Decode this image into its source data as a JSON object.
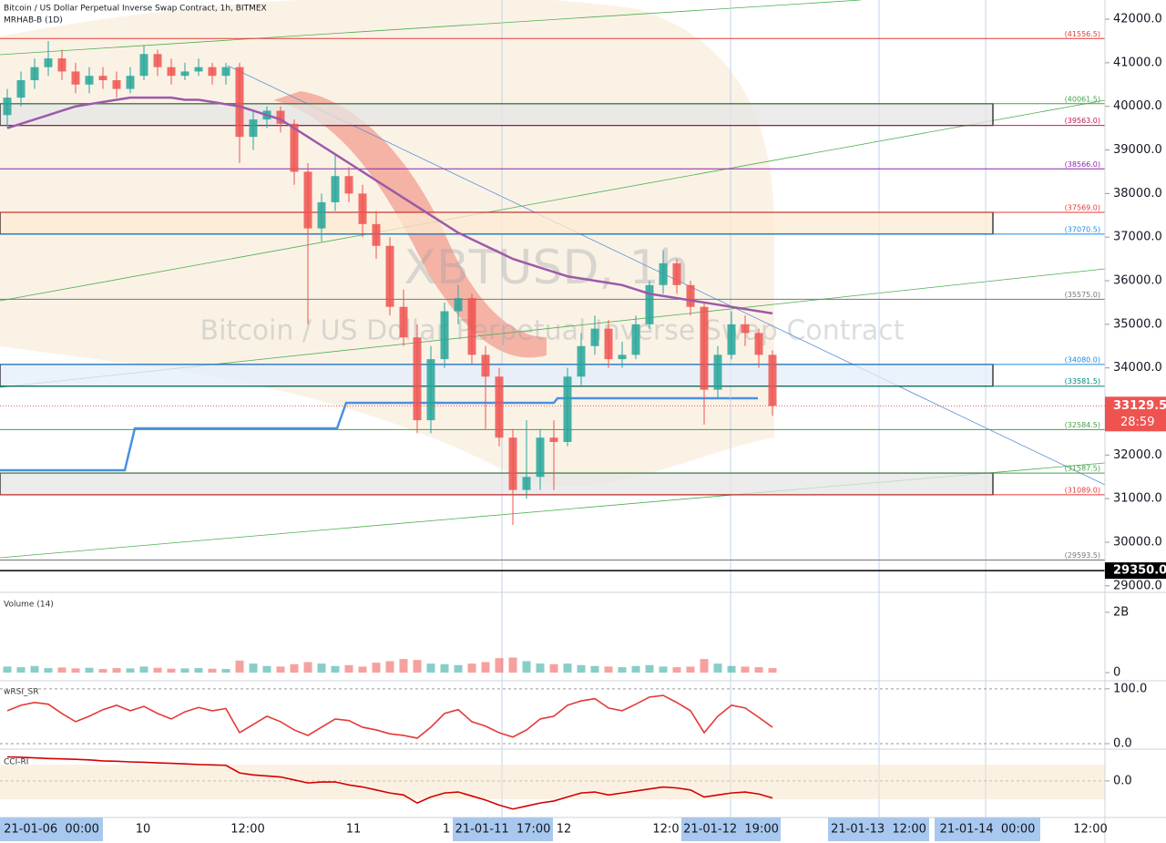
{
  "chart_data": {
    "type": "candlestick",
    "title": "Bitcoin / US Dollar Perpetual Inverse Swap Contract, 1h, BITMEX",
    "subtitle": "MRHAB-B (1D)",
    "watermark": [
      "XBTUSD, 1h",
      "Bitcoin / US Dollar Perpetual Inverse Swap Contract"
    ],
    "up_color": "#26a69a",
    "down_color": "#ef5350",
    "candles": [
      [
        39800,
        40400,
        39500,
        40200
      ],
      [
        40200,
        40800,
        40000,
        40600
      ],
      [
        40600,
        41100,
        40400,
        40900
      ],
      [
        40900,
        41500,
        40700,
        41100
      ],
      [
        41100,
        41300,
        40600,
        40800
      ],
      [
        40800,
        41000,
        40300,
        40500
      ],
      [
        40500,
        40900,
        40300,
        40700
      ],
      [
        40700,
        40900,
        40400,
        40600
      ],
      [
        40600,
        40800,
        40200,
        40400
      ],
      [
        40400,
        40900,
        40300,
        40700
      ],
      [
        40700,
        41400,
        40600,
        41200
      ],
      [
        41200,
        41300,
        40700,
        40900
      ],
      [
        40900,
        41100,
        40500,
        40700
      ],
      [
        40700,
        41000,
        40600,
        40800
      ],
      [
        40800,
        41100,
        40700,
        40900
      ],
      [
        40900,
        41000,
        40500,
        40700
      ],
      [
        40700,
        41000,
        40500,
        40900
      ],
      [
        40900,
        41000,
        38700,
        39300
      ],
      [
        39300,
        39900,
        39000,
        39700
      ],
      [
        39700,
        40000,
        39500,
        39900
      ],
      [
        39900,
        40000,
        39400,
        39600
      ],
      [
        39600,
        39700,
        38200,
        38500
      ],
      [
        38500,
        38700,
        35000,
        37200
      ],
      [
        37200,
        38000,
        36900,
        37800
      ],
      [
        37800,
        38900,
        37600,
        38400
      ],
      [
        38400,
        38600,
        37800,
        38000
      ],
      [
        38000,
        38200,
        37000,
        37300
      ],
      [
        37300,
        37600,
        36500,
        36800
      ],
      [
        36800,
        37000,
        35200,
        35400
      ],
      [
        35400,
        35800,
        34500,
        34700
      ],
      [
        34700,
        35000,
        32500,
        32800
      ],
      [
        32800,
        34500,
        32500,
        34200
      ],
      [
        34200,
        35500,
        34000,
        35300
      ],
      [
        35300,
        35900,
        35000,
        35600
      ],
      [
        35600,
        35700,
        34100,
        34300
      ],
      [
        34300,
        34500,
        32600,
        33800
      ],
      [
        33800,
        34000,
        32200,
        32400
      ],
      [
        32400,
        32600,
        30400,
        31200
      ],
      [
        31200,
        32800,
        31000,
        31500
      ],
      [
        31500,
        32600,
        31200,
        32400
      ],
      [
        32400,
        32800,
        31200,
        32300
      ],
      [
        32300,
        34000,
        32200,
        33800
      ],
      [
        33800,
        34800,
        33600,
        34500
      ],
      [
        34500,
        35200,
        34300,
        34900
      ],
      [
        34900,
        35100,
        34000,
        34200
      ],
      [
        34200,
        34600,
        34000,
        34300
      ],
      [
        34300,
        35200,
        34200,
        35000
      ],
      [
        35000,
        36000,
        34900,
        35900
      ],
      [
        35900,
        36700,
        35700,
        36400
      ],
      [
        36400,
        36500,
        35700,
        35900
      ],
      [
        35900,
        36000,
        35200,
        35400
      ],
      [
        35400,
        35500,
        32700,
        33500
      ],
      [
        33500,
        34500,
        33300,
        34300
      ],
      [
        34300,
        35300,
        34200,
        35000
      ],
      [
        35000,
        35200,
        34500,
        34800
      ],
      [
        34800,
        34900,
        34000,
        34300
      ],
      [
        34300,
        34400,
        32900,
        33129.5
      ]
    ],
    "ma": {
      "color": "#9c5aa8",
      "values": [
        39500,
        39600,
        39700,
        39800,
        39900,
        40000,
        40050,
        40100,
        40150,
        40200,
        40200,
        40200,
        40200,
        40150,
        40150,
        40100,
        40050,
        40000,
        39900,
        39800,
        39700,
        39500,
        39300,
        39100,
        38900,
        38700,
        38500,
        38300,
        38100,
        37900,
        37700,
        37500,
        37300,
        37100,
        36950,
        36800,
        36650,
        36500,
        36400,
        36300,
        36200,
        36100,
        36050,
        36000,
        35950,
        35900,
        35800,
        35700,
        35650,
        35600,
        35550,
        35500,
        35450,
        35400,
        35350,
        35300,
        35250
      ]
    },
    "ylim": [
      28850,
      42440
    ],
    "yticks": [
      {
        "value": 29000,
        "label": "29000.0"
      },
      {
        "value": 30000,
        "label": "30000.0"
      },
      {
        "value": 31000,
        "label": "31000.0"
      },
      {
        "value": 32000,
        "label": "32000.0"
      },
      {
        "value": 33000,
        "label": "33000.0"
      },
      {
        "value": 34000,
        "label": "34000.0"
      },
      {
        "value": 35000,
        "label": "35000.0"
      },
      {
        "value": 36000,
        "label": "36000.0"
      },
      {
        "value": 37000,
        "label": "37000.0"
      },
      {
        "value": 38000,
        "label": "38000.0"
      },
      {
        "value": 39000,
        "label": "39000.0"
      },
      {
        "value": 40000,
        "label": "40000.0"
      },
      {
        "value": 41000,
        "label": "41000.0"
      },
      {
        "value": 42000,
        "label": "42000.0"
      }
    ],
    "levels": [
      {
        "value": 41556.5,
        "label": "(41556.5)",
        "color": "#e53935"
      },
      {
        "value": 40061.5,
        "label": "(40061.5)",
        "color": "#43a047"
      },
      {
        "value": 39563.0,
        "label": "(39563.0)",
        "color": "#c2185b"
      },
      {
        "value": 38566.0,
        "label": "(38566.0)",
        "color": "#8e24aa"
      },
      {
        "value": 37569.0,
        "label": "(37569.0)",
        "color": "#e53935"
      },
      {
        "value": 37070.5,
        "label": "(37070.5)",
        "color": "#1e88e5"
      },
      {
        "value": 35575.0,
        "label": "(35575.0)",
        "color": "#757575"
      },
      {
        "value": 34080.0,
        "label": "(34080.0)",
        "color": "#1e88e5"
      },
      {
        "value": 33581.5,
        "label": "(33581.5)",
        "color": "#00897b"
      },
      {
        "value": 32584.5,
        "label": "(32584.5)",
        "color": "#43a047"
      },
      {
        "value": 31587.5,
        "label": "(31587.5)",
        "color": "#43a047"
      },
      {
        "value": 31089.0,
        "label": "(31089.0)",
        "color": "#e53935"
      },
      {
        "value": 29593.5,
        "label": "(29593.5)",
        "color": "#757575"
      }
    ],
    "last_price": 33129.5,
    "countdown": "28:59",
    "marker": {
      "value": 29350,
      "label": "29350.0"
    },
    "time_labels": [
      "21-01-06  00:00",
      "10",
      "12:00",
      "11",
      "1",
      "21-01-11  17:00",
      "12",
      "12:0",
      "21-01-12  19:00",
      "21-01-13  12:00",
      "21-01-14  00:00",
      "12:00"
    ],
    "volume": {
      "title": "Volume (14)",
      "values": [
        0.2,
        0.18,
        0.22,
        0.15,
        0.17,
        0.14,
        0.16,
        0.12,
        0.15,
        0.14,
        0.2,
        0.16,
        0.13,
        0.14,
        0.15,
        0.13,
        0.12,
        0.4,
        0.3,
        0.22,
        0.2,
        0.28,
        0.35,
        0.3,
        0.22,
        0.25,
        0.2,
        0.33,
        0.38,
        0.45,
        0.42,
        0.3,
        0.28,
        0.25,
        0.3,
        0.35,
        0.48,
        0.5,
        0.38,
        0.3,
        0.28,
        0.3,
        0.25,
        0.22,
        0.2,
        0.18,
        0.22,
        0.25,
        0.2,
        0.18,
        0.2,
        0.45,
        0.3,
        0.22,
        0.2,
        0.18,
        0.15
      ],
      "ylim": [
        -0.21,
        2.6
      ],
      "yticks": [
        {
          "value": 2,
          "label": "2B"
        },
        0
      ]
    },
    "rsi": {
      "title": "wRSI_SR",
      "color": "#e53935",
      "values": [
        60,
        70,
        75,
        72,
        55,
        40,
        50,
        62,
        70,
        60,
        68,
        55,
        45,
        58,
        66,
        60,
        64,
        20,
        35,
        50,
        40,
        25,
        15,
        30,
        45,
        42,
        30,
        25,
        18,
        15,
        10,
        30,
        55,
        62,
        40,
        32,
        20,
        12,
        25,
        45,
        50,
        70,
        78,
        82,
        65,
        60,
        72,
        85,
        88,
        75,
        60,
        20,
        50,
        70,
        65,
        48,
        30
      ],
      "ylim": [
        -10,
        113
      ],
      "yticks": [
        {
          "value": 100,
          "label": "100.0"
        },
        {
          "value": 0,
          "label": "0.0"
        }
      ]
    },
    "cci": {
      "title": "CCI-RI",
      "color": "#d50000",
      "values": [
        120,
        118,
        115,
        112,
        110,
        108,
        105,
        100,
        98,
        95,
        93,
        90,
        88,
        85,
        82,
        80,
        78,
        40,
        30,
        25,
        20,
        5,
        -10,
        -5,
        -5,
        -20,
        -30,
        -45,
        -60,
        -70,
        -110,
        -80,
        -60,
        -55,
        -75,
        -95,
        -120,
        -140,
        -125,
        -110,
        -100,
        -80,
        -60,
        -55,
        -70,
        -60,
        -50,
        -40,
        -30,
        -35,
        -45,
        -80,
        -70,
        -60,
        -55,
        -65,
        -85
      ],
      "ylim": [
        -173,
        145
      ],
      "yticks": [
        {
          "value": 0,
          "label": "0.0"
        }
      ]
    }
  }
}
